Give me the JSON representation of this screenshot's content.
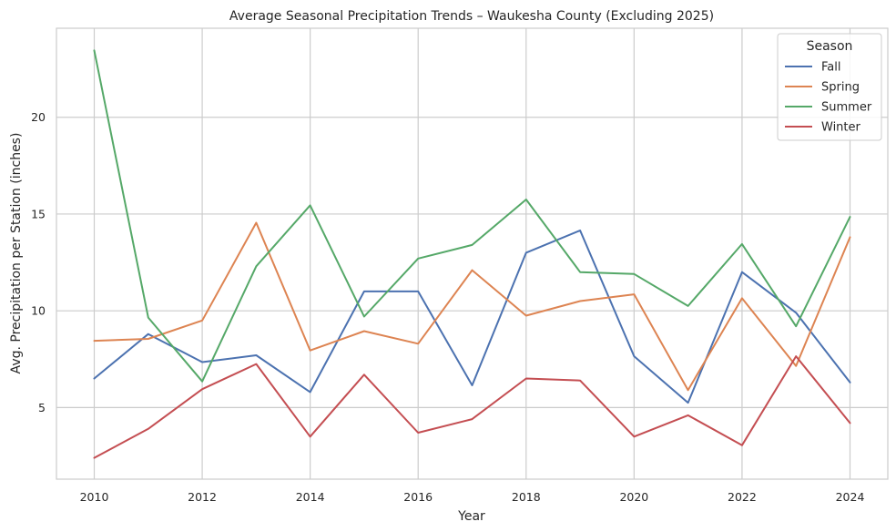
{
  "chart_data": {
    "type": "line",
    "title": "Average Seasonal Precipitation Trends – Waukesha County (Excluding 2025)",
    "xlabel": "Year",
    "ylabel": "Avg. Precipitation per Station (inches)",
    "x": [
      2010,
      2011,
      2012,
      2013,
      2014,
      2015,
      2016,
      2017,
      2018,
      2019,
      2020,
      2021,
      2022,
      2023,
      2024
    ],
    "xlim": [
      2009.3,
      2024.7
    ],
    "ylim": [
      1.3,
      24.6
    ],
    "x_ticks": [
      2010,
      2012,
      2014,
      2016,
      2018,
      2020,
      2022,
      2024
    ],
    "y_ticks": [
      5,
      10,
      15,
      20
    ],
    "grid": true,
    "legend": {
      "title": "Season",
      "position": "top-right"
    },
    "series": [
      {
        "name": "Fall",
        "color": "#4c72b0",
        "values": [
          6.5,
          8.8,
          7.35,
          7.7,
          5.8,
          11.0,
          11.0,
          6.15,
          13.0,
          14.15,
          7.65,
          5.25,
          12.0,
          9.9,
          6.3
        ]
      },
      {
        "name": "Spring",
        "color": "#dd8452",
        "values": [
          8.45,
          8.55,
          9.5,
          14.55,
          7.95,
          8.95,
          8.3,
          12.1,
          9.75,
          10.5,
          10.85,
          5.9,
          10.65,
          7.15,
          13.8
        ]
      },
      {
        "name": "Summer",
        "color": "#55a868",
        "values": [
          23.45,
          9.65,
          6.35,
          12.3,
          15.45,
          9.7,
          12.7,
          13.4,
          15.75,
          12.0,
          11.9,
          10.25,
          13.45,
          9.2,
          14.85
        ]
      },
      {
        "name": "Winter",
        "color": "#c44e52",
        "values": [
          2.4,
          3.9,
          5.95,
          7.25,
          3.5,
          6.7,
          3.7,
          4.4,
          6.5,
          6.4,
          3.5,
          4.6,
          3.05,
          7.65,
          4.2
        ]
      }
    ]
  }
}
